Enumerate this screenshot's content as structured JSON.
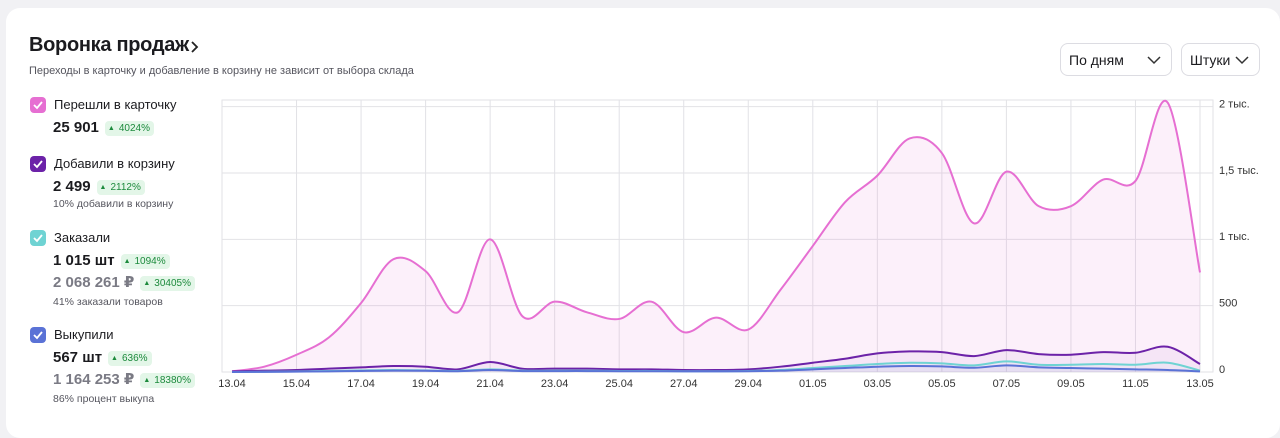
{
  "header": {
    "title": "Воронка продаж",
    "subtitle": "Переходы в карточку и добавление в корзину не зависит от выбора склада"
  },
  "controls": {
    "period": "По дням",
    "unit": "Штуки"
  },
  "metrics": [
    {
      "value": "25 901",
      "change": "4024%"
    },
    {
      "value": "2 499",
      "change": "2112%",
      "note": "10% добавили в корзину"
    },
    {
      "value": "1 015 шт",
      "change": "1094%",
      "money": "2 068 261 ₽",
      "money_change": "30405%",
      "note": "41% заказали товаров"
    },
    {
      "value": "567 шт",
      "change": "636%",
      "money": "1 164 253 ₽",
      "money_change": "18380%",
      "note": "86% процент выкупа"
    }
  ],
  "chart_data": {
    "type": "line",
    "categories": [
      "13.04",
      null,
      "15.04",
      null,
      "17.04",
      null,
      "19.04",
      null,
      "21.04",
      null,
      "23.04",
      null,
      "25.04",
      null,
      "27.04",
      null,
      "29.04",
      null,
      "01.05",
      null,
      "03.05",
      null,
      "05.05",
      null,
      "07.05",
      null,
      "09.05",
      null,
      "11.05",
      null,
      "13.05"
    ],
    "series": [
      {
        "name": "Перешли в карточку",
        "color": "#e66fd2",
        "values": [
          5,
          40,
          130,
          260,
          520,
          850,
          760,
          450,
          1000,
          420,
          530,
          450,
          400,
          530,
          300,
          410,
          320,
          620,
          950,
          1280,
          1480,
          1760,
          1650,
          1120,
          1510,
          1250,
          1250,
          1450,
          1440,
          2030,
          750
        ]
      },
      {
        "name": "Добавили в корзину",
        "color": "#6c22a8",
        "values": [
          5,
          10,
          15,
          25,
          35,
          45,
          40,
          20,
          75,
          25,
          25,
          25,
          20,
          20,
          15,
          15,
          20,
          40,
          70,
          100,
          140,
          155,
          150,
          120,
          165,
          135,
          130,
          150,
          145,
          190,
          60
        ]
      },
      {
        "name": "Заказали",
        "color": "#6fd3d3",
        "values": [
          0,
          2,
          5,
          8,
          12,
          15,
          12,
          8,
          20,
          10,
          10,
          10,
          8,
          8,
          6,
          6,
          8,
          15,
          30,
          45,
          60,
          70,
          65,
          50,
          80,
          55,
          55,
          60,
          55,
          70,
          10
        ]
      },
      {
        "name": "Выкупили",
        "color": "#5a72d6",
        "values": [
          0,
          1,
          3,
          5,
          8,
          10,
          9,
          6,
          15,
          7,
          7,
          7,
          6,
          6,
          5,
          5,
          6,
          10,
          20,
          30,
          40,
          45,
          42,
          32,
          50,
          35,
          30,
          25,
          20,
          15,
          5
        ]
      }
    ],
    "ylim": [
      0,
      2050
    ],
    "yticks": [
      0,
      500,
      {
        "value": 1000,
        "label": "1 тыс."
      },
      {
        "value": 1500,
        "label": "1,5 тыс."
      },
      {
        "value": 2000,
        "label": "2 тыс."
      }
    ],
    "grid": true
  }
}
